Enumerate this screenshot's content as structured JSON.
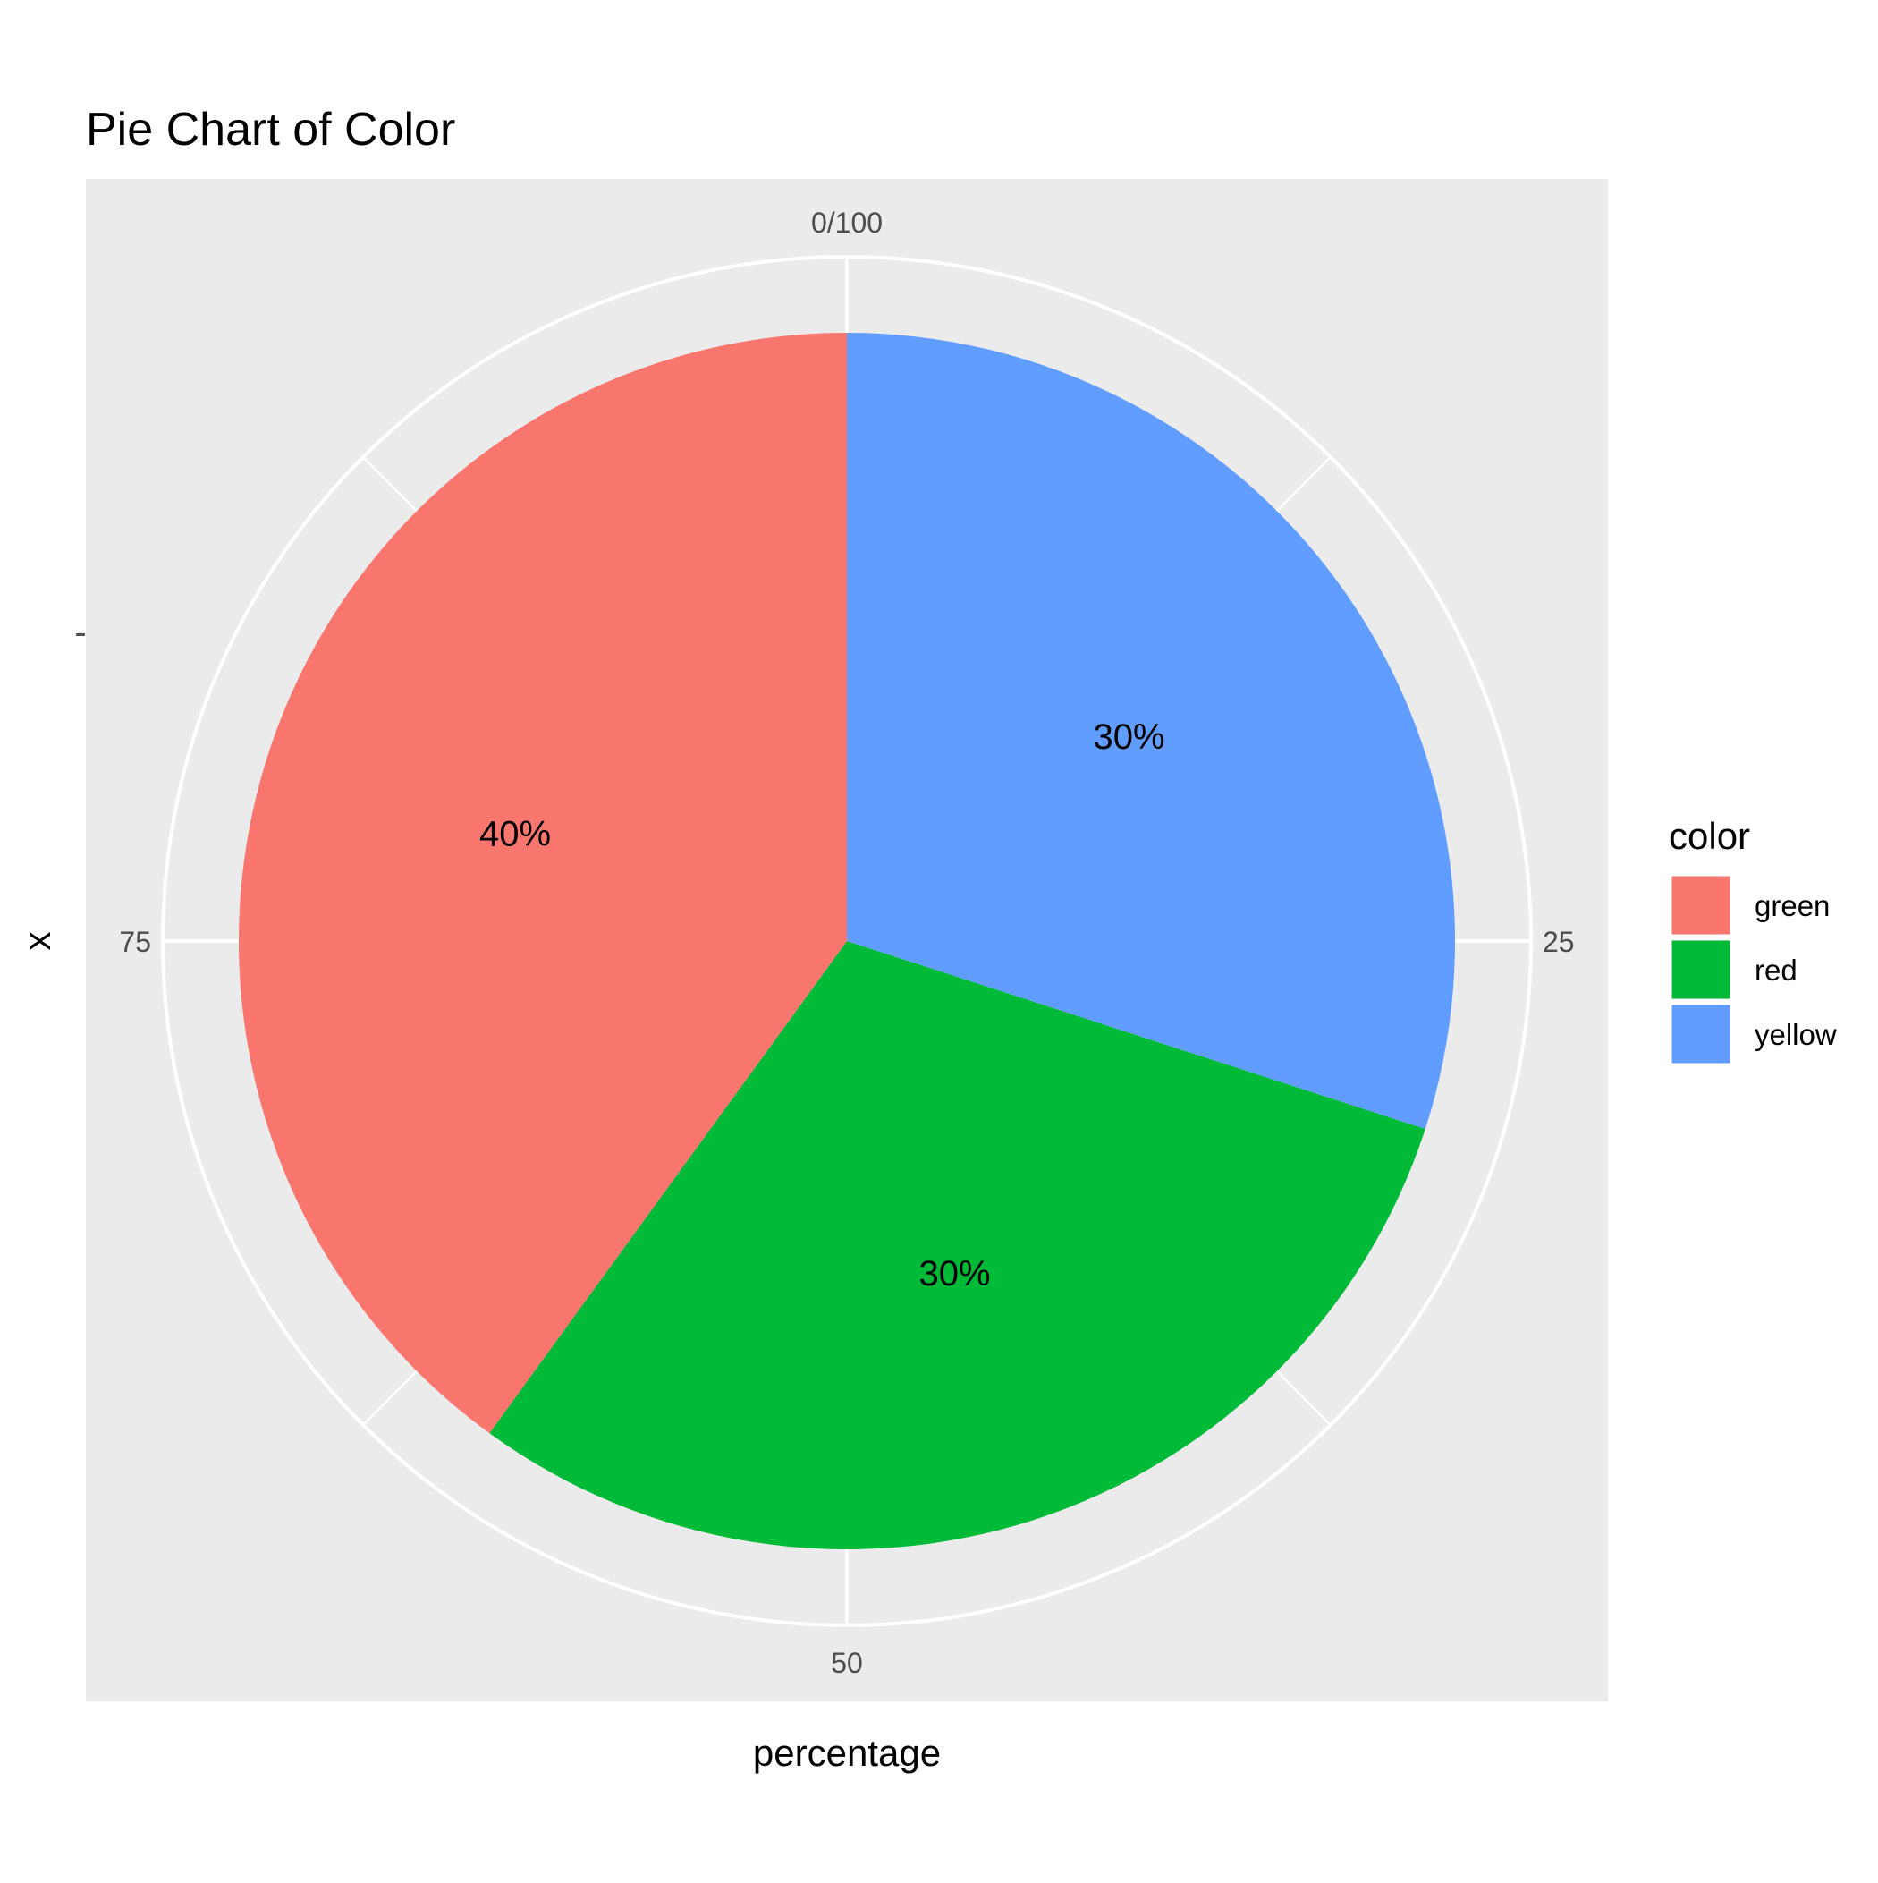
{
  "chart_data": {
    "type": "pie",
    "title": "Pie Chart of Color",
    "xlabel": "percentage",
    "ylabel": "x",
    "y_tick_label": "-",
    "theta_ticks": [
      "0/100",
      "25",
      "50",
      "75"
    ],
    "theta_tick_values": [
      0,
      25,
      50,
      75
    ],
    "legend_title": "color",
    "legend_position": "right",
    "grid": true,
    "slices": [
      {
        "label": "yellow",
        "value": 30,
        "display": "30%",
        "color": "#619CFF"
      },
      {
        "label": "red",
        "value": 30,
        "display": "30%",
        "color": "#00BA38"
      },
      {
        "label": "green",
        "value": 40,
        "display": "40%",
        "color": "#F8766D"
      }
    ],
    "legend_items": [
      {
        "label": "green",
        "color": "#F8766D"
      },
      {
        "label": "red",
        "color": "#00BA38"
      },
      {
        "label": "yellow",
        "color": "#619CFF"
      }
    ],
    "panel_color": "#EBEBEB",
    "grid_color": "#FFFFFF"
  }
}
